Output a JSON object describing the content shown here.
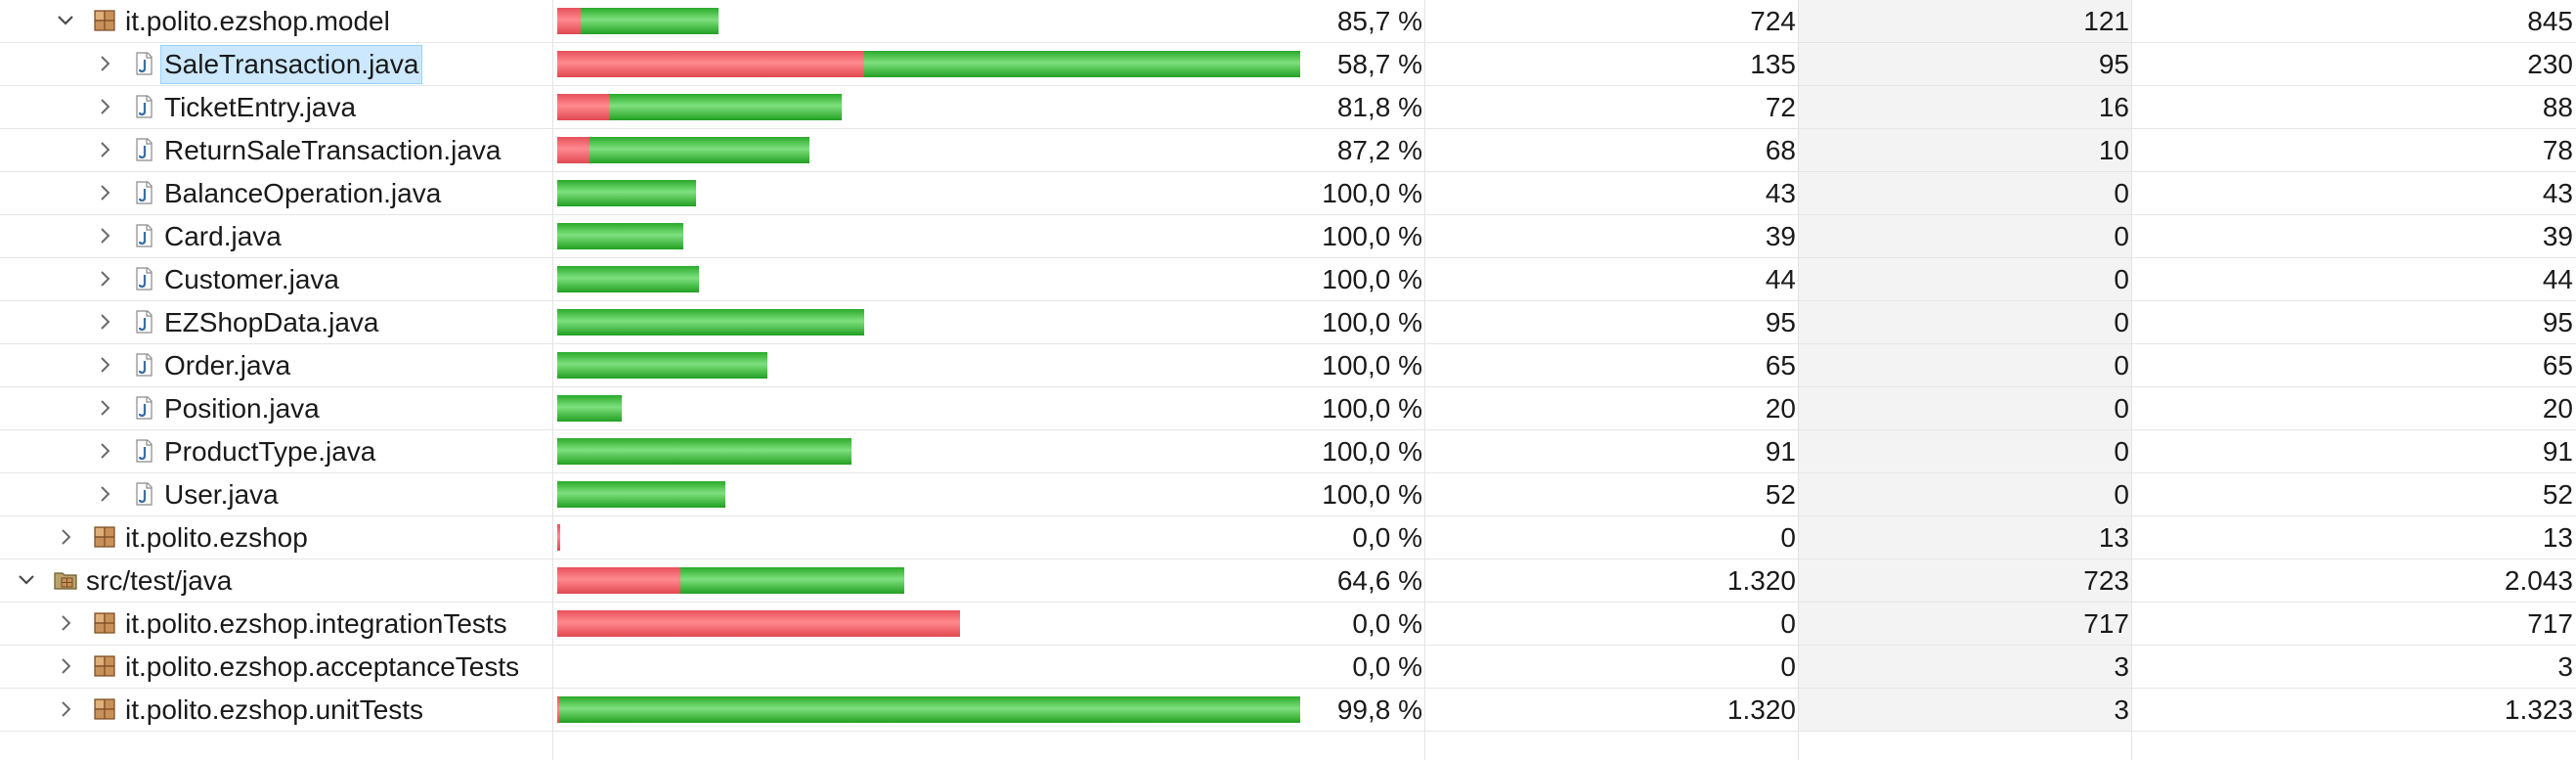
{
  "colors": {
    "covered": "#3cb83c",
    "missed": "#f0555c",
    "selection": "#cce8ff"
  },
  "rows": [
    {
      "indent": 1,
      "expanded": true,
      "icon": "package-icon",
      "label": "it.polito.ezshop.model",
      "ratio": 0.857,
      "percent": "85,7 %",
      "covered": "724",
      "missed": "121",
      "total": "845",
      "bar_fraction": 0.2176,
      "selected": false
    },
    {
      "indent": 2,
      "expanded": false,
      "icon": "java-file-icon",
      "label": "SaleTransaction.java",
      "ratio": 0.587,
      "percent": "58,7 %",
      "covered": "135",
      "missed": "95",
      "total": "230",
      "bar_fraction": 1.0,
      "selected": true
    },
    {
      "indent": 2,
      "expanded": false,
      "icon": "java-file-icon",
      "label": "TicketEntry.java",
      "ratio": 0.818,
      "percent": "81,8 %",
      "covered": "72",
      "missed": "16",
      "total": "88",
      "bar_fraction": 0.3826,
      "selected": false
    },
    {
      "indent": 2,
      "expanded": false,
      "icon": "java-file-icon",
      "label": "ReturnSaleTransaction.java",
      "ratio": 0.872,
      "percent": "87,2 %",
      "covered": "68",
      "missed": "10",
      "total": "78",
      "bar_fraction": 0.3391,
      "selected": false
    },
    {
      "indent": 2,
      "expanded": false,
      "icon": "java-file-icon",
      "label": "BalanceOperation.java",
      "ratio": 1.0,
      "percent": "100,0 %",
      "covered": "43",
      "missed": "0",
      "total": "43",
      "bar_fraction": 0.187,
      "selected": false
    },
    {
      "indent": 2,
      "expanded": false,
      "icon": "java-file-icon",
      "label": "Card.java",
      "ratio": 1.0,
      "percent": "100,0 %",
      "covered": "39",
      "missed": "0",
      "total": "39",
      "bar_fraction": 0.1696,
      "selected": false
    },
    {
      "indent": 2,
      "expanded": false,
      "icon": "java-file-icon",
      "label": "Customer.java",
      "ratio": 1.0,
      "percent": "100,0 %",
      "covered": "44",
      "missed": "0",
      "total": "44",
      "bar_fraction": 0.1913,
      "selected": false
    },
    {
      "indent": 2,
      "expanded": false,
      "icon": "java-file-icon",
      "label": "EZShopData.java",
      "ratio": 1.0,
      "percent": "100,0 %",
      "covered": "95",
      "missed": "0",
      "total": "95",
      "bar_fraction": 0.413,
      "selected": false
    },
    {
      "indent": 2,
      "expanded": false,
      "icon": "java-file-icon",
      "label": "Order.java",
      "ratio": 1.0,
      "percent": "100,0 %",
      "covered": "65",
      "missed": "0",
      "total": "65",
      "bar_fraction": 0.2826,
      "selected": false
    },
    {
      "indent": 2,
      "expanded": false,
      "icon": "java-file-icon",
      "label": "Position.java",
      "ratio": 1.0,
      "percent": "100,0 %",
      "covered": "20",
      "missed": "0",
      "total": "20",
      "bar_fraction": 0.087,
      "selected": false
    },
    {
      "indent": 2,
      "expanded": false,
      "icon": "java-file-icon",
      "label": "ProductType.java",
      "ratio": 1.0,
      "percent": "100,0 %",
      "covered": "91",
      "missed": "0",
      "total": "91",
      "bar_fraction": 0.3957,
      "selected": false
    },
    {
      "indent": 2,
      "expanded": false,
      "icon": "java-file-icon",
      "label": "User.java",
      "ratio": 1.0,
      "percent": "100,0 %",
      "covered": "52",
      "missed": "0",
      "total": "52",
      "bar_fraction": 0.2261,
      "selected": false
    },
    {
      "indent": 1,
      "expanded": false,
      "icon": "package-icon",
      "label": "it.polito.ezshop",
      "ratio": 0.0,
      "percent": "0,0 %",
      "covered": "0",
      "missed": "13",
      "total": "13",
      "bar_fraction": 0.004,
      "selected": false
    },
    {
      "indent": 0,
      "expanded": true,
      "icon": "source-folder-icon",
      "label": "src/test/java",
      "ratio": 0.646,
      "percent": "64,6 %",
      "covered": "1.320",
      "missed": "723",
      "total": "2.043",
      "bar_fraction": 0.4666,
      "selected": false
    },
    {
      "indent": 1,
      "expanded": false,
      "icon": "package-icon",
      "label": "it.polito.ezshop.integrationTests",
      "ratio": 0.0,
      "percent": "0,0 %",
      "covered": "0",
      "missed": "717",
      "total": "717",
      "bar_fraction": 0.5419,
      "selected": false
    },
    {
      "indent": 1,
      "expanded": false,
      "icon": "package-icon",
      "label": "it.polito.ezshop.acceptanceTests",
      "ratio": 0.0,
      "percent": "0,0 %",
      "covered": "0",
      "missed": "3",
      "total": "3",
      "bar_fraction": 0.0,
      "selected": false
    },
    {
      "indent": 1,
      "expanded": false,
      "icon": "package-icon",
      "label": "it.polito.ezshop.unitTests",
      "ratio": 0.998,
      "percent": "99,8 %",
      "covered": "1.320",
      "missed": "3",
      "total": "1.323",
      "bar_fraction": 1.0,
      "selected": false
    }
  ]
}
